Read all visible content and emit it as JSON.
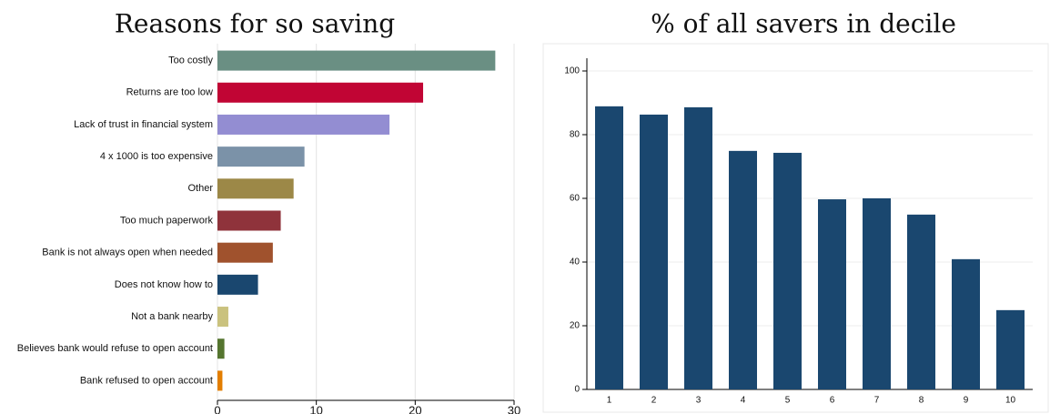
{
  "chart_data": [
    {
      "type": "bar",
      "orientation": "horizontal",
      "title": "Reasons for so saving",
      "categories": [
        "Too costly",
        "Returns are too low",
        "Lack of trust in financial system",
        "4 x 1000 is too expensive",
        "Other",
        "Too much paperwork",
        "Bank is not always open when needed",
        "Does not know how to",
        "Not a bank nearby",
        "Believes bank would refuse to open account",
        "Bank refused to open account"
      ],
      "values": [
        28.1,
        20.8,
        17.4,
        8.8,
        7.7,
        6.4,
        5.6,
        4.1,
        1.1,
        0.7,
        0.5
      ],
      "colors": [
        "#6a8f83",
        "#c10534",
        "#938dd2",
        "#7b92a8",
        "#9c8847",
        "#8f333b",
        "#a0522d",
        "#1a476f",
        "#cac27e",
        "#55752f",
        "#e37e00"
      ],
      "xlim": [
        0,
        30
      ],
      "xticks": [
        0,
        10,
        20,
        30
      ],
      "grid": true
    },
    {
      "type": "bar",
      "orientation": "vertical",
      "title": "% of all savers in decile",
      "categories": [
        "1",
        "2",
        "3",
        "4",
        "5",
        "6",
        "7",
        "8",
        "9",
        "10"
      ],
      "values": [
        88.9,
        86.3,
        88.6,
        74.9,
        74.3,
        59.7,
        60.0,
        54.9,
        40.9,
        24.9
      ],
      "color": "#1a476f",
      "ylim": [
        0,
        104
      ],
      "yticks": [
        0,
        20,
        40,
        60,
        80,
        100
      ],
      "grid": true
    }
  ]
}
